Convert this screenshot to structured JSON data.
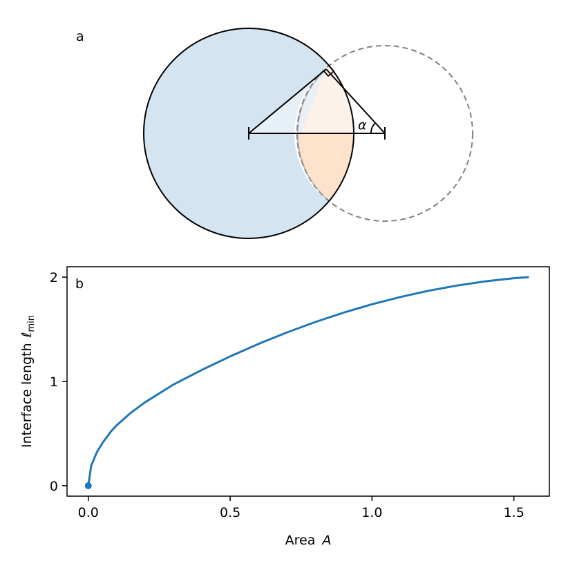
{
  "panel_a": {
    "label": "a",
    "alpha_symbol": "α"
  },
  "panel_b": {
    "label": "b"
  },
  "chart_data": {
    "type": "line",
    "x": [
      0.0,
      0.01,
      0.03,
      0.05,
      0.08,
      0.1,
      0.15,
      0.2,
      0.3,
      0.4,
      0.5,
      0.6,
      0.7,
      0.8,
      0.9,
      1.0,
      1.1,
      1.2,
      1.3,
      1.4,
      1.5,
      1.55
    ],
    "series": [
      {
        "values": [
          0.0,
          0.19,
          0.32,
          0.41,
          0.52,
          0.58,
          0.7,
          0.8,
          0.97,
          1.11,
          1.24,
          1.36,
          1.47,
          1.57,
          1.66,
          1.74,
          1.81,
          1.87,
          1.92,
          1.96,
          1.99,
          2.0
        ],
        "color": "#1f77b4"
      }
    ],
    "start_point": {
      "x": 0.0,
      "y": 0.0
    },
    "xlabel": "Area",
    "xlabel_var": "A",
    "ylabel": "Interface length",
    "ylabel_var": "ℓ",
    "ylabel_sub": "min",
    "xticks": [
      "0.0",
      "0.5",
      "1.0",
      "1.5"
    ],
    "yticks": [
      "0",
      "1",
      "2"
    ],
    "xlim": [
      -0.075,
      1.625
    ],
    "ylim": [
      -0.1,
      2.1
    ],
    "grid": false
  }
}
